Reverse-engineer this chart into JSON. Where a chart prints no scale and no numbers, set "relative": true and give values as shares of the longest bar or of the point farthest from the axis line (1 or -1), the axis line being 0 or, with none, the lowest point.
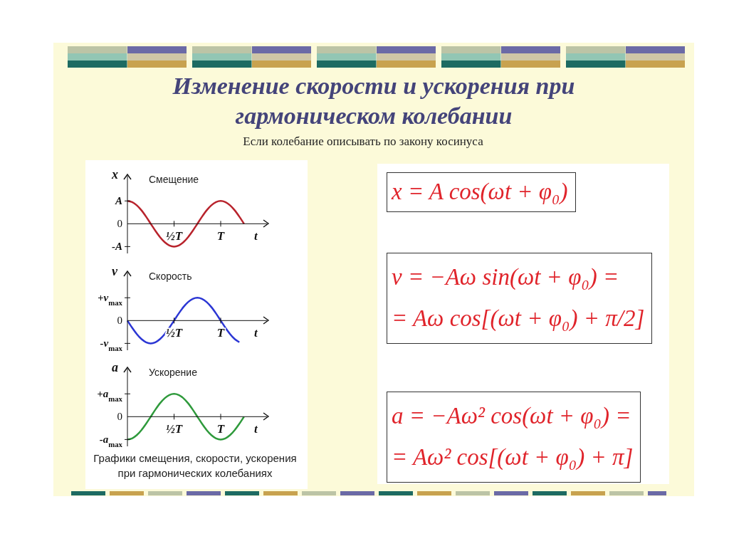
{
  "chart_data": [
    {
      "type": "other",
      "title": "Изменение скорости и ускорения при гармоническом колебании",
      "subtitle": "Если колебание описывать по закону косинуса"
    },
    {
      "type": "line",
      "relative": true,
      "title": "Смещение",
      "xlabel": "t",
      "ylabel": "x",
      "categories": [
        null,
        null,
        null,
        null,
        null,
        null,
        null,
        null,
        null,
        null,
        "½T",
        null,
        null,
        null,
        null,
        null,
        null,
        null,
        null,
        null,
        "T",
        null,
        null,
        null,
        null,
        null
      ],
      "values": [
        1,
        0.95,
        0.81,
        0.59,
        0.31,
        0,
        -0.31,
        -0.59,
        -0.81,
        -0.95,
        -1,
        -0.95,
        -0.81,
        -0.59,
        -0.31,
        0,
        0.31,
        0.59,
        0.81,
        0.95,
        1,
        0.95,
        0.81,
        0.59,
        0.31,
        0
      ],
      "color": "#b8232c",
      "marker": "none",
      "annotations": [
        "A",
        "0",
        "-A"
      ]
    },
    {
      "type": "line",
      "relative": true,
      "title": "Скорость",
      "xlabel": "t",
      "ylabel": "v",
      "categories": [
        null,
        null,
        null,
        null,
        null,
        null,
        null,
        null,
        null,
        null,
        "½T",
        null,
        null,
        null,
        null,
        null,
        null,
        null,
        null,
        null,
        "T",
        null,
        null,
        null,
        null
      ],
      "values": [
        0,
        -0.31,
        -0.59,
        -0.81,
        -0.95,
        -1,
        -0.95,
        -0.81,
        -0.59,
        -0.31,
        0,
        0.31,
        0.59,
        0.81,
        0.95,
        1,
        0.95,
        0.81,
        0.59,
        0.31,
        0,
        -0.31,
        -0.59,
        -0.81,
        -0.95
      ],
      "color": "#2b36d4",
      "marker": "none",
      "annotations": [
        "+v$_{max}$",
        "0",
        "-v$_{max}$"
      ]
    },
    {
      "type": "line",
      "relative": true,
      "title": "Ускорение",
      "xlabel": "t",
      "ylabel": "a",
      "categories": [
        null,
        null,
        null,
        null,
        null,
        null,
        null,
        null,
        null,
        null,
        "½T",
        null,
        null,
        null,
        null,
        null,
        null,
        null,
        null,
        null,
        "T",
        null,
        null,
        null,
        null,
        null
      ],
      "values": [
        -1,
        -0.95,
        -0.81,
        -0.59,
        -0.31,
        0,
        0.31,
        0.59,
        0.81,
        0.95,
        1,
        0.95,
        0.81,
        0.59,
        0.31,
        0,
        -0.31,
        -0.59,
        -0.81,
        -0.95,
        -1,
        -0.95,
        -0.81,
        -0.59,
        -0.31,
        0
      ],
      "color": "#2f9a3c",
      "marker": "none",
      "annotations": [
        "+a$_{max}$",
        "0",
        "-a$_{max}$",
        "Графики смещения, скорости, ускорения при гармонических колебаниях"
      ]
    },
    {
      "type": "other",
      "annotations": [
        "x = A cos(ωt + φ₀)",
        "v = −Aω sin(ωt + φ₀) =\n= Aω cos[(ωt + φ₀) + π/2]",
        "a = −Aω² cos(ωt + φ₀) =\n= Aω² cos[(ωt + φ₀) + π]"
      ]
    }
  ]
}
